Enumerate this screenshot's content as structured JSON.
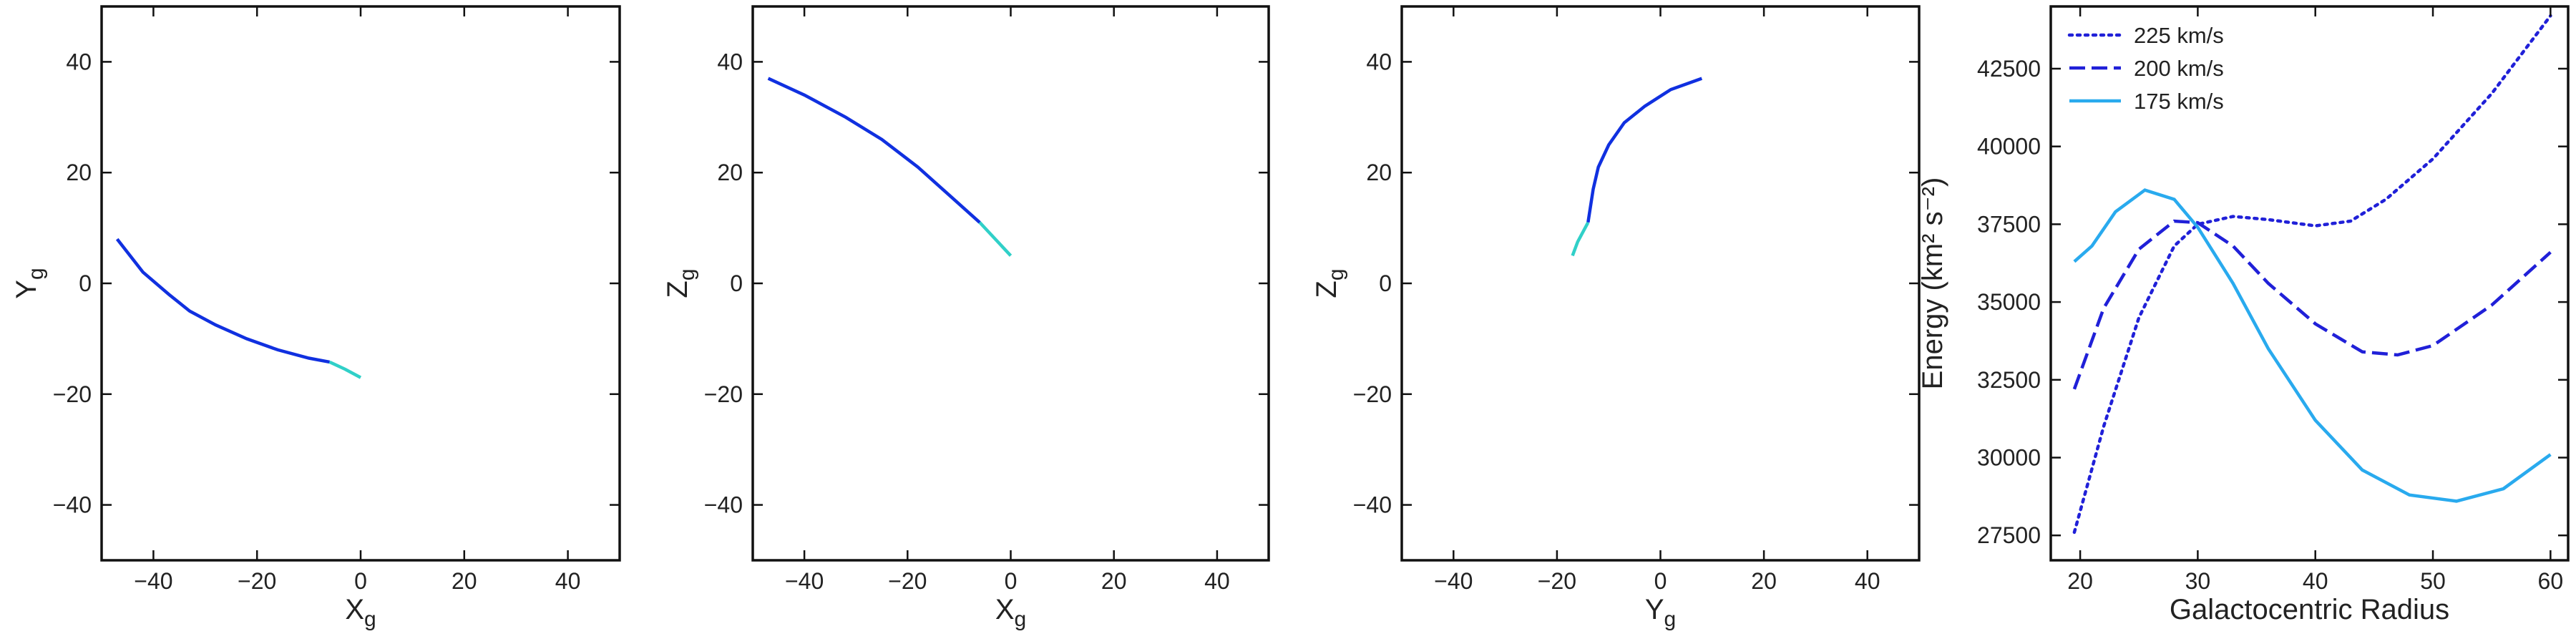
{
  "chart_data": [
    {
      "type": "line",
      "xlabel": {
        "main": "X",
        "sub": "g"
      },
      "ylabel": {
        "main": "Y",
        "sub": "g"
      },
      "xlim": [
        -50,
        50
      ],
      "ylim": [
        -50,
        50
      ],
      "xticks": [
        {
          "value": -40,
          "label": "−40"
        },
        {
          "value": -20,
          "label": "−20"
        },
        0,
        20,
        40
      ],
      "yticks": [
        {
          "value": -40,
          "label": "−40"
        },
        {
          "value": -20,
          "label": "−20"
        },
        0,
        20,
        40
      ],
      "series": [
        {
          "color": "#1030e0",
          "linestyle": "solid",
          "x": [
            -47,
            -42,
            -37,
            -33,
            -28,
            -22,
            -16,
            -10,
            -6
          ],
          "values": [
            8,
            2,
            -2,
            -5,
            -7.5,
            -10,
            -12,
            -13.5,
            -14.2
          ]
        },
        {
          "color": "#30d0c8",
          "linestyle": "solid",
          "x": [
            -6,
            -3,
            0
          ],
          "values": [
            -14.2,
            -15.5,
            -17
          ]
        }
      ]
    },
    {
      "type": "line",
      "xlabel": {
        "main": "X",
        "sub": "g"
      },
      "ylabel": {
        "main": "Z",
        "sub": "g"
      },
      "xlim": [
        -50,
        50
      ],
      "ylim": [
        -50,
        50
      ],
      "xticks": [
        {
          "value": -40,
          "label": "−40"
        },
        {
          "value": -20,
          "label": "−20"
        },
        0,
        20,
        40
      ],
      "yticks": [
        {
          "value": -40,
          "label": "−40"
        },
        {
          "value": -20,
          "label": "−20"
        },
        0,
        20,
        40
      ],
      "series": [
        {
          "color": "#1030e0",
          "linestyle": "solid",
          "x": [
            -47,
            -40,
            -32,
            -25,
            -18,
            -12,
            -6
          ],
          "values": [
            37,
            34,
            30,
            26,
            21,
            16,
            11
          ]
        },
        {
          "color": "#30d0c8",
          "linestyle": "solid",
          "x": [
            -6,
            -3,
            0
          ],
          "values": [
            11,
            8,
            5
          ]
        }
      ]
    },
    {
      "type": "line",
      "xlabel": {
        "main": "Y",
        "sub": "g"
      },
      "ylabel": {
        "main": "Z",
        "sub": "g"
      },
      "xlim": [
        -50,
        50
      ],
      "ylim": [
        -50,
        50
      ],
      "xticks": [
        {
          "value": -40,
          "label": "−40"
        },
        {
          "value": -20,
          "label": "−20"
        },
        0,
        20,
        40
      ],
      "yticks": [
        {
          "value": -40,
          "label": "−40"
        },
        {
          "value": -20,
          "label": "−20"
        },
        0,
        20,
        40
      ],
      "series": [
        {
          "color": "#1030e0",
          "linestyle": "solid",
          "x": [
            -14,
            -13,
            -12,
            -10,
            -7,
            -3,
            2,
            8
          ],
          "values": [
            11,
            17,
            21,
            25,
            29,
            32,
            35,
            37
          ]
        },
        {
          "color": "#30d0c8",
          "linestyle": "solid",
          "x": [
            -17,
            -16,
            -14
          ],
          "values": [
            5,
            7.5,
            11
          ]
        }
      ]
    },
    {
      "type": "line",
      "xlabel": {
        "main": "Galactocentric Radius"
      },
      "ylabel": {
        "main": "Energy (km² s⁻²)"
      },
      "xlim": [
        17.5,
        61.5
      ],
      "ylim": [
        26700,
        44500
      ],
      "xticks": [
        20,
        30,
        40,
        50,
        60
      ],
      "yticks": [
        27500,
        30000,
        32500,
        35000,
        37500,
        40000,
        42500
      ],
      "legend": "upper left",
      "series": [
        {
          "name": "225 km/s",
          "color": "#2020d8",
          "linestyle": "dotted",
          "x": [
            19.5,
            22,
            25,
            28,
            30,
            33,
            36,
            40,
            43,
            46,
            50,
            55,
            60
          ],
          "values": [
            27600,
            31000,
            34500,
            36800,
            37500,
            37750,
            37650,
            37450,
            37600,
            38300,
            39600,
            41700,
            44200
          ]
        },
        {
          "name": "200 km/s",
          "color": "#2020d8",
          "linestyle": "dashed",
          "x": [
            19.5,
            22,
            25,
            28,
            30,
            33,
            36,
            40,
            44,
            47,
            50,
            55,
            60
          ],
          "values": [
            32200,
            34800,
            36700,
            37600,
            37550,
            36800,
            35600,
            34300,
            33400,
            33300,
            33600,
            34900,
            36600
          ]
        },
        {
          "name": "175 km/s",
          "color": "#29aaee",
          "linestyle": "solid",
          "x": [
            19.5,
            21,
            23,
            25.5,
            28,
            30,
            33,
            36,
            40,
            44,
            48,
            52,
            56,
            60
          ],
          "values": [
            36300,
            36800,
            37900,
            38600,
            38300,
            37400,
            35600,
            33500,
            31200,
            29600,
            28800,
            28600,
            29000,
            30100
          ]
        }
      ]
    }
  ]
}
